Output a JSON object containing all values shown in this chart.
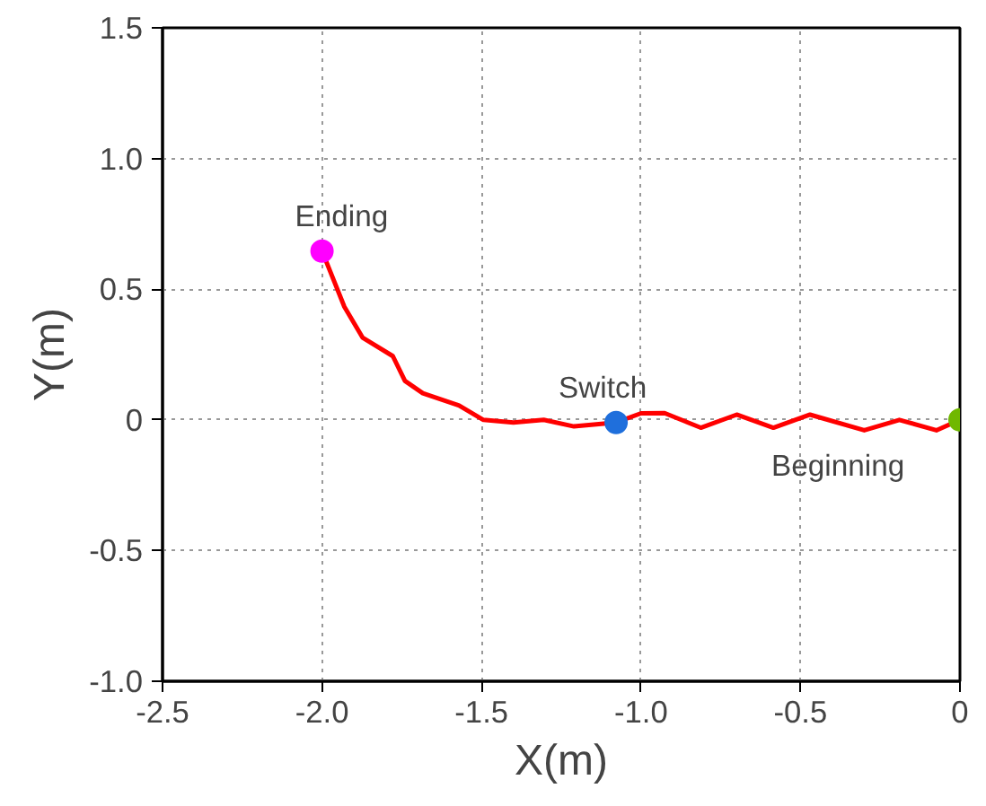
{
  "chart_data": {
    "type": "line",
    "xlabel": "X(m)",
    "ylabel": "Y(m)",
    "xlim": [
      -2.5,
      0
    ],
    "ylim": [
      -1.0,
      1.5
    ],
    "xticks": [
      -2.5,
      {
        "value": -2,
        "label": "-2.0"
      },
      -1.5,
      {
        "value": -1,
        "label": "-1.0"
      },
      -0.5,
      0
    ],
    "yticks": [
      {
        "value": -1,
        "label": "-1.0"
      },
      -0.5,
      0,
      0.5,
      {
        "value": 1,
        "label": "1.0"
      },
      1.5
    ],
    "grid": true,
    "series": [
      {
        "color": "#ff0000",
        "x": [
          -2.0,
          -1.93,
          -1.873,
          -1.778,
          -1.74,
          -1.684,
          -1.57,
          -1.494,
          -1.4,
          -1.305,
          -1.21,
          -1.078,
          -1.0,
          -0.926,
          -0.8125,
          -0.7,
          -0.585,
          -0.47,
          -0.3,
          -0.19,
          -0.074,
          0
        ],
        "values": [
          0.646,
          0.433,
          0.315,
          0.244,
          0.149,
          0.102,
          0.055,
          0.0,
          -0.01,
          0.0,
          -0.025,
          -0.01,
          0.025,
          0.026,
          -0.03,
          0.02,
          -0.03,
          0.02,
          -0.04,
          0.0,
          -0.04,
          0.0
        ]
      },
      {
        "type": "scatter",
        "x": [
          -2.0,
          -1.078,
          0
        ],
        "values": [
          0.646,
          -0.01,
          0.0
        ],
        "colors": [
          "#ff00ff",
          "#1f6fdc",
          "#70b800"
        ]
      }
    ],
    "annotations": [
      {
        "text": "Ending",
        "x": -2.0,
        "y": 0.646
      },
      {
        "text": "Switch",
        "x": -1.078,
        "y": -0.01
      },
      {
        "text": "Beginning",
        "x": 0,
        "y": 0.0
      }
    ]
  }
}
